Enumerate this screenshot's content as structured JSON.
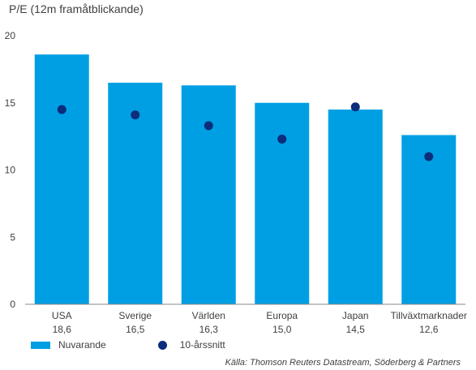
{
  "chart_data": {
    "type": "bar",
    "title": "P/E (12m framåtblickande)",
    "categories": [
      "USA",
      "Sverige",
      "Världen",
      "Europa",
      "Japan",
      "Tillväxtmarknader"
    ],
    "category_values_text": [
      "18,6",
      "16,5",
      "16,3",
      "15,0",
      "14,5",
      "12,6"
    ],
    "series": [
      {
        "name": "Nuvarande",
        "type": "bar",
        "color": "#009fe3",
        "values": [
          18.6,
          16.5,
          16.3,
          15.0,
          14.5,
          12.6
        ]
      },
      {
        "name": "10-årssnitt",
        "type": "scatter",
        "color": "#0a2d7c",
        "values": [
          14.5,
          14.1,
          13.3,
          12.3,
          14.7,
          11.0
        ]
      }
    ],
    "ylim": [
      0,
      20
    ],
    "yticks": [
      0,
      5,
      10,
      15,
      20
    ],
    "legend_position": "bottom-left",
    "source": "Källa: Thomson Reuters Datastream, Söderberg & Partners"
  }
}
